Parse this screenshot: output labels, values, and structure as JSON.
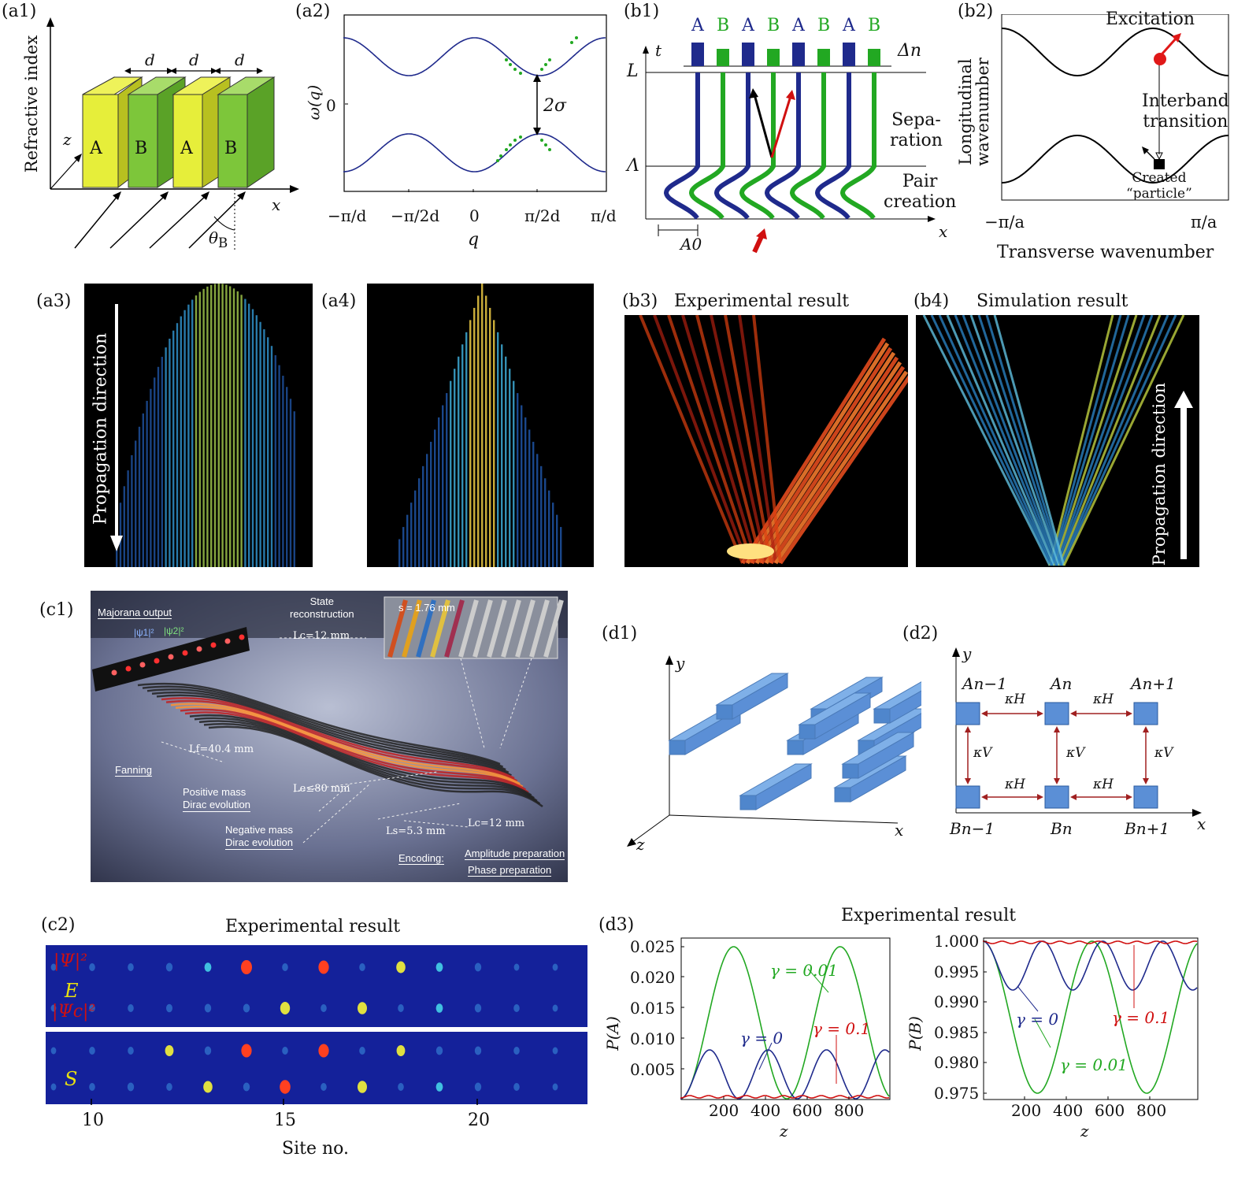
{
  "panels": {
    "a1": {
      "label": "(a1)",
      "ylabel": "Refractive index",
      "xlabel": "x",
      "zlabel": "z",
      "spacing": "d",
      "blocks": [
        "A",
        "B",
        "A",
        "B"
      ],
      "angle": "θ"
    },
    "a2": {
      "label": "(a2)",
      "ylabel": "ω(q)",
      "xlabel": "q",
      "gap": "2σ",
      "ytick": "0",
      "xticks": [
        "−π/d",
        "−π/2d",
        "0",
        "π/2d",
        "π/d"
      ]
    },
    "b1": {
      "label": "(b1)",
      "top": [
        "A",
        "B",
        "A",
        "B",
        "A",
        "B",
        "A",
        "B"
      ],
      "dn": "Δn",
      "t": "t",
      "L": "L",
      "Lambda": "Λ",
      "x": "x",
      "A0": "A0",
      "sep": [
        "Sepa-",
        "ration"
      ],
      "pair": [
        "Pair",
        "creation"
      ]
    },
    "b2": {
      "label": "(b2)",
      "ylabel": [
        "Longitudinal",
        "wavenumber"
      ],
      "xlabel": "Transverse wavenumber",
      "exc": "Excitation",
      "inter": [
        "Interband",
        "transition"
      ],
      "created": [
        "Created",
        "“particle”"
      ],
      "xl": "−π/a",
      "xr": "π/a"
    },
    "a3": {
      "label": "(a3)",
      "arrow": "Propagation direction"
    },
    "a4": {
      "label": "(a4)"
    },
    "b3": {
      "label": "(b3)",
      "title": "Experimental result"
    },
    "b4": {
      "label": "(b4)",
      "title": "Simulation result",
      "arrow": "Propagation direction"
    },
    "c1": {
      "label": "(c1)",
      "majorana": "Majorana output",
      "psi1": "|ψ1|²",
      "psi2": "|ψ2|²",
      "state": [
        "State",
        "reconstruction"
      ],
      "lc12": "Lc=12 mm",
      "s": "s = 1.76 mm",
      "lf": "Lf=40.4 mm",
      "fanning": "Fanning",
      "pos": [
        "Positive mass",
        "Dirac evolution"
      ],
      "le": "Le≤80 mm",
      "neg": [
        "Negative mass",
        "Dirac evolution"
      ],
      "ls": "Ls=5.3 mm",
      "lc12b": "Lc=12 mm",
      "enc": "Encoding:",
      "amp": "Amplitude preparation",
      "phase": "Phase preparation"
    },
    "c2": {
      "label": "(c2)",
      "title": "Experimental result",
      "psi": "|Ψ|²",
      "E": "E",
      "psic": "|Ψc|²",
      "S": "S",
      "xticks": [
        "10",
        "15",
        "20"
      ],
      "xlabel": "Site no."
    },
    "d1": {
      "label": "(d1)",
      "x": "x",
      "y": "y",
      "z": "z"
    },
    "d2": {
      "label": "(d2)",
      "y": "y",
      "x": "x",
      "An1": "An−1",
      "An": "An",
      "Anp": "An+1",
      "Bn1": "Bn−1",
      "Bn": "Bn",
      "Bnp": "Bn+1",
      "kH": "κH",
      "kV": "κV"
    },
    "d3": {
      "label": "(d3)",
      "title": "Experimental result",
      "left": {
        "ylabel": "P(A)",
        "xlabel": "z",
        "yticks": [
          "0.025",
          "0.020",
          "0.015",
          "0.010",
          "0.005"
        ],
        "xticks": [
          "200",
          "400",
          "600",
          "800"
        ],
        "g0": "γ = 0",
        "g001": "γ = 0.01",
        "g01": "γ = 0.1"
      },
      "right": {
        "ylabel": "P(B)",
        "xlabel": "z",
        "yticks": [
          "1.000",
          "0.995",
          "0.990",
          "0.985",
          "0.980",
          "0.975"
        ],
        "xticks": [
          "200",
          "400",
          "600",
          "800"
        ],
        "g0": "γ = 0",
        "g001": "γ = 0.01",
        "g01": "γ = 0.1"
      }
    }
  },
  "colors": {
    "blue": "#1f2a8c",
    "green": "#22a822",
    "red": "#d01010",
    "yellow": "#e6ee3a",
    "ygreen": "#7dc63a",
    "blockblue": "#5b8fd6"
  }
}
